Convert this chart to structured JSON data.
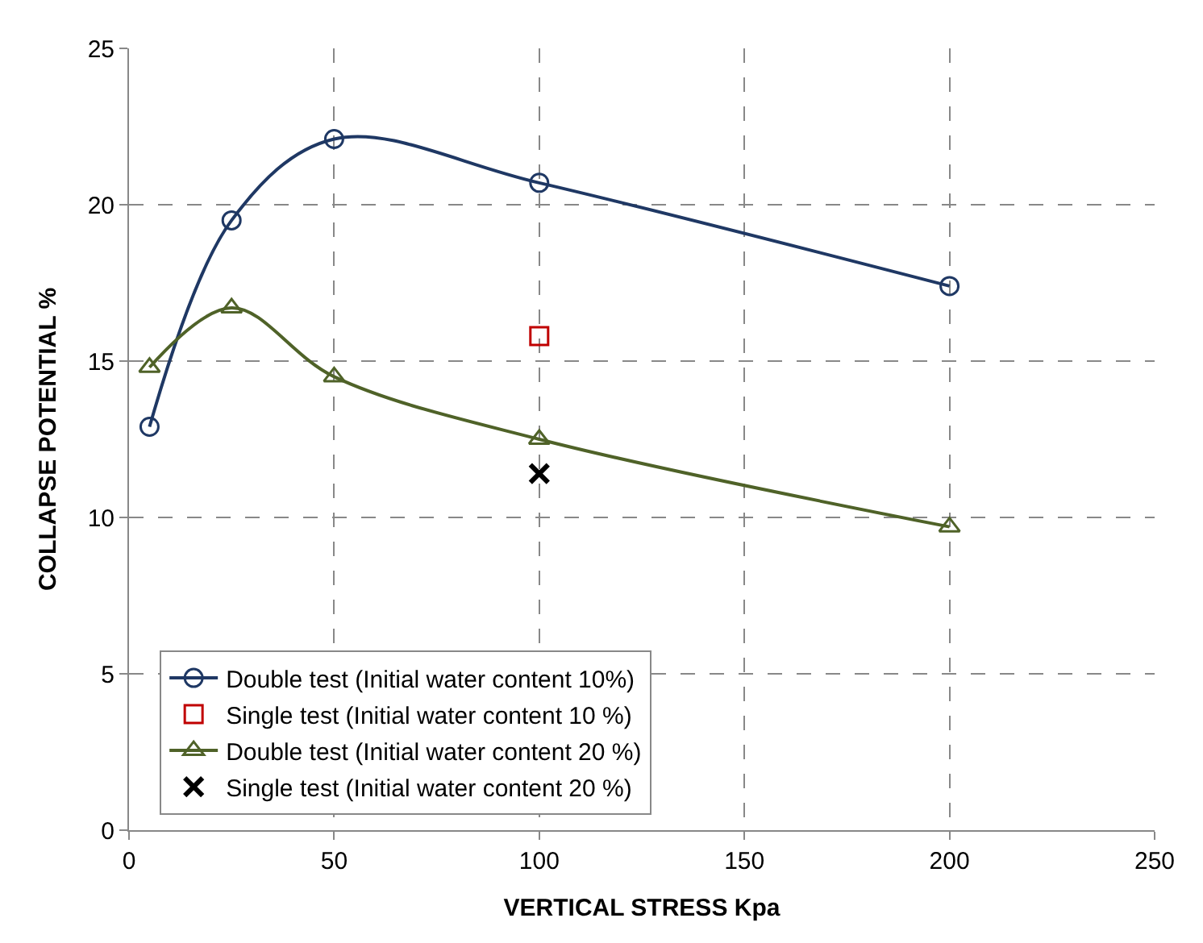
{
  "chart_data": {
    "type": "line",
    "xlabel": "VERTICAL STRESS Kpa",
    "ylabel": "COLLAPSE POTENTIAL %",
    "xlim": [
      0,
      250
    ],
    "xticks": [
      0,
      50,
      100,
      150,
      200,
      250
    ],
    "ylim": [
      0,
      25
    ],
    "yticks": [
      0,
      5,
      10,
      15,
      20,
      25
    ],
    "grid": true,
    "legend": "bottom left",
    "series": [
      {
        "name": "Double test (Initial water content 10%)",
        "color": "#1f3864",
        "marker": "circle",
        "x": [
          5,
          25,
          50,
          100,
          200
        ],
        "values": [
          12.9,
          19.5,
          22.1,
          20.7,
          17.4
        ]
      },
      {
        "name": "Single test (Initial water content 10 %)",
        "type": "scatter",
        "color": "#c00000",
        "marker": "square",
        "x": [
          100
        ],
        "values": [
          15.8
        ]
      },
      {
        "name": "Double test (Initial water content 20 %)",
        "color": "#4f6228",
        "marker": "triangle",
        "x": [
          5,
          25,
          50,
          100,
          200
        ],
        "values": [
          14.8,
          16.7,
          14.5,
          12.5,
          9.7
        ]
      },
      {
        "name": "Single test (Initial water content 20 %)",
        "type": "scatter",
        "color": "#000000",
        "marker": "cross",
        "x": [
          100
        ],
        "values": [
          11.4
        ]
      }
    ]
  }
}
